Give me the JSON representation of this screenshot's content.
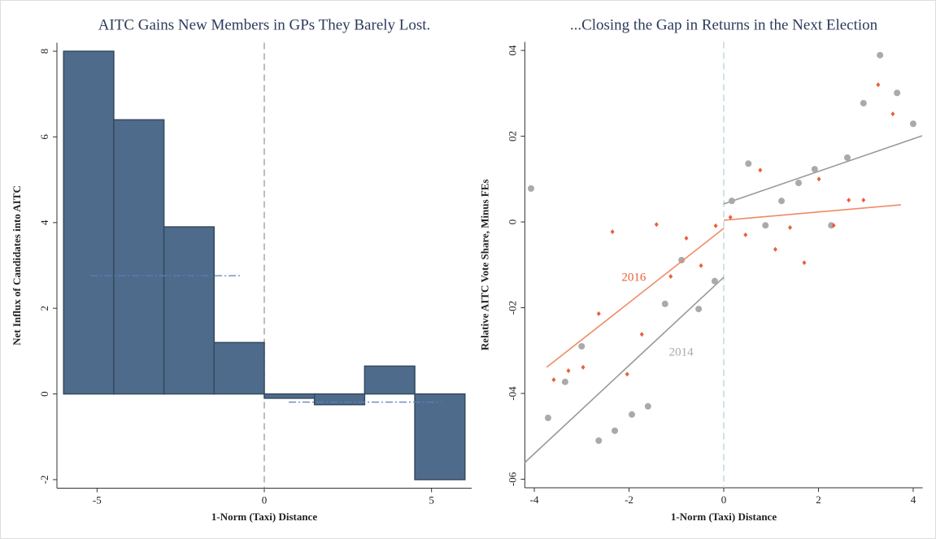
{
  "chart_data": [
    {
      "type": "histogram",
      "title": "AITC Gains New Members in GPs They Barely Lost.",
      "xlabel": "1-Norm (Taxi) Distance",
      "ylabel": "Net Influx of Candidates into AITC",
      "bins": [
        -6,
        -4.5,
        -3,
        -1.5,
        0,
        1.5,
        3,
        4.5,
        6
      ],
      "counts": [
        8.0,
        6.4,
        3.9,
        1.2,
        -0.1,
        -0.25,
        0.65,
        -2.0
      ],
      "color": "#4f6b8c",
      "edgecolor": "#34495f",
      "mean_lines": [
        {
          "x": [
            -5.2,
            -0.7
          ],
          "y": [
            2.76,
            2.76
          ]
        },
        {
          "x": [
            0.73,
            5.3
          ],
          "y": [
            -0.19,
            -0.19
          ]
        }
      ],
      "mean_color": "#5a7fb8",
      "reference_x": 0,
      "reference_color": "#999999",
      "xlim": [
        -6.2,
        6.2
      ],
      "xticks": [
        -5,
        0,
        5
      ],
      "ylim": [
        -2.2,
        8.2
      ],
      "yticks": [
        -2,
        0,
        2,
        4,
        6,
        8
      ]
    },
    {
      "type": "scatter",
      "title": "...Closing the Gap in Returns in the Next Election",
      "xlabel": "1-Norm (Taxi) Distance",
      "ylabel": "Relative AITC Vote Share, Minus FEs",
      "series": [
        {
          "name": "2014",
          "color": "#aaaaaa",
          "line_color": "#999999",
          "marker": "circle",
          "x": [
            -4.07,
            -3.71,
            -3.35,
            -3.0,
            -2.64,
            -2.3,
            -1.94,
            -1.6,
            -1.24,
            -0.89,
            -0.53,
            -0.19,
            0.17,
            0.52,
            0.88,
            1.22,
            1.58,
            1.92,
            2.27,
            2.61,
            2.95,
            3.3,
            3.66,
            4.0
          ],
          "values": [
            0.0078,
            -0.0457,
            -0.0373,
            -0.029,
            -0.051,
            -0.0487,
            -0.0449,
            -0.043,
            -0.0191,
            -0.0089,
            -0.0203,
            -0.0138,
            0.0049,
            0.0136,
            -0.0008,
            0.0049,
            0.0091,
            0.0123,
            -0.0008,
            0.015,
            0.0277,
            0.0389,
            0.0301,
            0.0229
          ],
          "fit": [
            {
              "x": [
                -4.2,
                0
              ],
              "y": [
                -0.0561,
                -0.0129
              ]
            },
            {
              "x": [
                0,
                4.19
              ],
              "y": [
                0.0042,
                0.0201
              ]
            }
          ],
          "label_pos": [
            -0.9,
            -0.0305
          ]
        },
        {
          "name": "2016",
          "color": "#e8603c",
          "line_color": "#f08a66",
          "marker": "diamond",
          "x": [
            -3.59,
            -3.28,
            -2.97,
            -2.64,
            -2.35,
            -2.04,
            -1.73,
            -1.42,
            -1.12,
            -0.79,
            -0.48,
            -0.17,
            0.14,
            0.46,
            0.77,
            1.09,
            1.4,
            1.7,
            2.01,
            2.32,
            2.64,
            2.95,
            3.26,
            3.57
          ],
          "values": [
            -0.0368,
            -0.0347,
            -0.0339,
            -0.0214,
            -0.0023,
            -0.0355,
            -0.0262,
            -0.0006,
            -0.0127,
            -0.0038,
            -0.0102,
            -0.0009,
            0.0011,
            -0.003,
            0.0121,
            -0.0064,
            -0.0013,
            -0.0095,
            0.01,
            -0.0008,
            0.0051,
            0.0051,
            0.032,
            0.0252
          ],
          "fit": [
            {
              "x": [
                -3.74,
                0
              ],
              "y": [
                -0.0339,
                -0.0015
              ]
            },
            {
              "x": [
                0,
                3.74
              ],
              "y": [
                0.0004,
                0.004
              ]
            }
          ],
          "label_pos": [
            -1.9,
            -0.0131
          ]
        }
      ],
      "reference_x": 0,
      "reference_color": "#b8d2dc",
      "xlim": [
        -4.2,
        4.2
      ],
      "xticks": [
        -4,
        -2,
        0,
        2,
        4
      ],
      "ylim": [
        -0.062,
        0.042
      ],
      "yticks": [
        {
          "value": -0.06,
          "label": "-06"
        },
        {
          "value": -0.04,
          "label": "-04"
        },
        {
          "value": -0.02,
          "label": "-02"
        },
        0,
        {
          "value": 0.02,
          "label": "02"
        },
        {
          "value": 0.04,
          "label": "04"
        }
      ]
    }
  ]
}
